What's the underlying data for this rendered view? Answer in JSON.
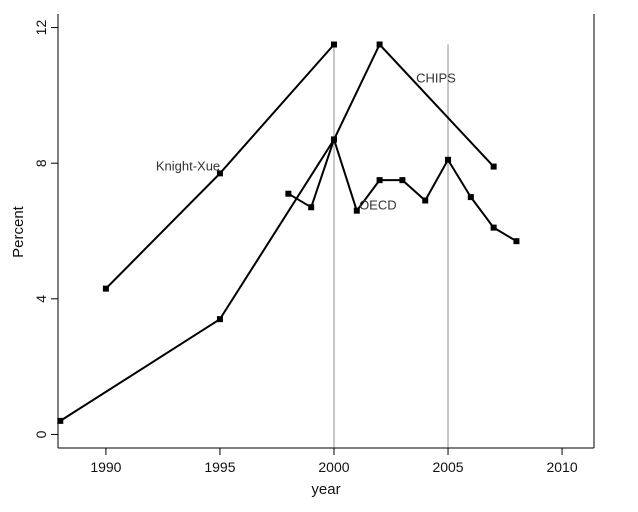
{
  "chart_data": {
    "type": "line",
    "xlabel": "year",
    "ylabel": "Percent",
    "xlim": [
      1987.9,
      2011.4
    ],
    "ylim": [
      -0.4,
      12.4
    ],
    "xticks": [
      1990,
      1995,
      2000,
      2005,
      2010
    ],
    "yticks": [
      0,
      4,
      8,
      12
    ],
    "grid": false,
    "reference_lines_x": [
      2000,
      2005
    ],
    "series": [
      {
        "points": [
          [
            1990,
            4.3
          ],
          [
            1995,
            7.7
          ],
          [
            2000,
            11.5
          ]
        ]
      },
      {
        "points": [
          [
            1988,
            0.4
          ],
          [
            1995,
            3.4
          ],
          [
            2000,
            8.7
          ],
          [
            2002,
            11.5
          ],
          [
            2007,
            7.9
          ]
        ]
      },
      {
        "points": [
          [
            1998,
            7.1
          ],
          [
            1999,
            6.7
          ],
          [
            2000,
            8.7
          ],
          [
            2001,
            6.6
          ],
          [
            2002,
            7.5
          ],
          [
            2003,
            7.5
          ],
          [
            2004,
            6.9
          ],
          [
            2005,
            8.1
          ],
          [
            2006,
            7.0
          ],
          [
            2007,
            6.1
          ],
          [
            2008,
            5.7
          ]
        ]
      }
    ],
    "annotations": [
      {
        "text": "Knight-Xue",
        "x": 1993.6,
        "y": 7.9,
        "anchor": "middle"
      },
      {
        "text": "CHIPS",
        "x": 2003.6,
        "y": 10.5,
        "anchor": "start"
      },
      {
        "text": "OECD",
        "x": 2001.1,
        "y": 6.75,
        "anchor": "start"
      }
    ]
  }
}
